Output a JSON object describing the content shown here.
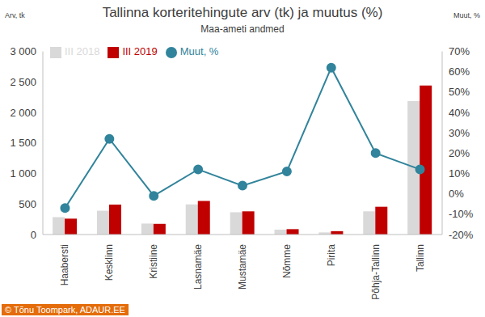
{
  "chart_data": {
    "type": "bar",
    "title": "Tallinna korteritehingute arv (tk) ja muutus (%)",
    "subtitle": "Maa-ameti andmed",
    "y_label": "Arv, tk",
    "y2_label": "Muut, %",
    "source": "© Tõnu Toompark, ADAUR.EE",
    "categories": [
      "Haabersti",
      "Kesklinn",
      "Kristiine",
      "Lasnamäe",
      "Mustamäe",
      "Nõmme",
      "Pirita",
      "Põhja-Tallinn",
      "Tallinn"
    ],
    "series": [
      {
        "name": "III 2018",
        "type": "bar",
        "color": "#d9d9d9",
        "values": [
          285,
          390,
          180,
          495,
          365,
          80,
          35,
          380,
          2185
        ]
      },
      {
        "name": "III 2019",
        "type": "bar",
        "color": "#c00000",
        "values": [
          260,
          490,
          175,
          550,
          380,
          88,
          55,
          455,
          2440
        ]
      },
      {
        "name": "Muut, %",
        "type": "line",
        "axis": "y2",
        "marker": "circle",
        "color": "#31849b",
        "values": [
          -7,
          27,
          -1,
          12,
          4,
          11,
          62,
          20,
          12
        ]
      }
    ],
    "ylim": [
      0,
      3000
    ],
    "yticks": [
      0,
      500,
      {
        "value": 1000,
        "label": "1 000"
      },
      {
        "value": 1500,
        "label": "1 500"
      },
      {
        "value": 2000,
        "label": "2 000"
      },
      {
        "value": 2500,
        "label": "2 500"
      },
      {
        "value": 3000,
        "label": "3 000"
      }
    ],
    "y2lim": [
      -20,
      70
    ],
    "y2ticks": [
      {
        "value": -20,
        "label": "-20%"
      },
      {
        "value": -10,
        "label": "-10%"
      },
      {
        "value": 0,
        "label": "0%"
      },
      {
        "value": 10,
        "label": "10%"
      },
      {
        "value": 20,
        "label": "20%"
      },
      {
        "value": 30,
        "label": "30%"
      },
      {
        "value": 40,
        "label": "40%"
      },
      {
        "value": 50,
        "label": "50%"
      },
      {
        "value": 60,
        "label": "60%"
      },
      {
        "value": 70,
        "label": "70%"
      }
    ],
    "grid": false,
    "legend": "top-left"
  }
}
